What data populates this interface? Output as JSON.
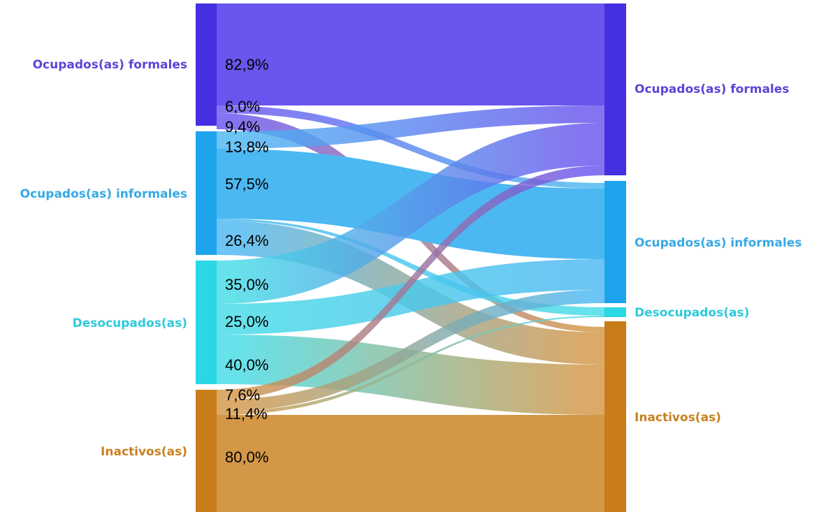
{
  "chart_data": {
    "type": "sankey",
    "nodes": [
      {
        "id": "of",
        "left_label": "Ocupados(as) formales",
        "right_label": "Ocupados(as) formales",
        "color": "#4430e0",
        "flow_color": "#6a55ee",
        "label_color": "#5a45d8"
      },
      {
        "id": "oi",
        "left_label": "Ocupados(as) informales",
        "right_label": "Ocupados(as) informales",
        "color": "#1ea4ec",
        "flow_color": "#4cb8f2",
        "label_color": "#35a9e6"
      },
      {
        "id": "de",
        "left_label": "Desocupados(as)",
        "right_label": "Desocupados(as)",
        "color": "#2ad7e4",
        "flow_color": "#45dbe6",
        "label_color": "#2ecadb"
      },
      {
        "id": "in",
        "left_label": "Inactivos(as)",
        "right_label": "Inactivos(as)",
        "color": "#c87c1a",
        "flow_color": "#d39747",
        "label_color": "#c8811f"
      }
    ],
    "flows": [
      {
        "from": "of",
        "to": "of",
        "label": "82,9%"
      },
      {
        "from": "of",
        "to": "oi",
        "label": "6,0%"
      },
      {
        "from": "of",
        "to": "in",
        "label": "9,4%"
      },
      {
        "from": "oi",
        "to": "of",
        "label": "13,8%"
      },
      {
        "from": "oi",
        "to": "oi",
        "label": "57,5%"
      },
      {
        "from": "oi",
        "to": "de",
        "label": ""
      },
      {
        "from": "oi",
        "to": "in",
        "label": "26,4%"
      },
      {
        "from": "de",
        "to": "of",
        "label": "35,0%"
      },
      {
        "from": "de",
        "to": "oi",
        "label": "25,0%"
      },
      {
        "from": "de",
        "to": "in",
        "label": "40,0%"
      },
      {
        "from": "in",
        "to": "of",
        "label": "7,6%"
      },
      {
        "from": "in",
        "to": "oi",
        "label": "11,4%"
      },
      {
        "from": "in",
        "to": "de",
        "label": ""
      },
      {
        "from": "in",
        "to": "in",
        "label": "80,0%"
      }
    ]
  }
}
